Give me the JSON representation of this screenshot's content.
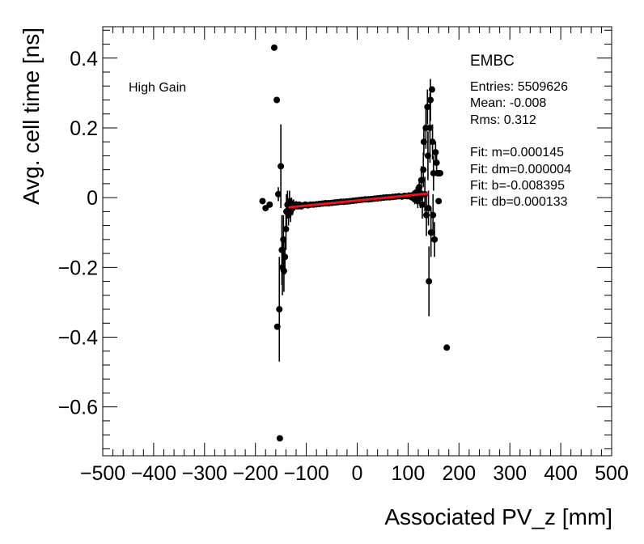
{
  "chart_data": {
    "type": "scatter",
    "xlabel": "Associated PV_z [mm]",
    "ylabel": "Avg. cell time [ns]",
    "xlim": [
      -500,
      500
    ],
    "ylim": [
      -0.74,
      0.49
    ],
    "x_ticks": [
      "−500",
      "−400",
      "−300",
      "−200",
      "−100",
      "0",
      "100",
      "200",
      "300",
      "400",
      "500"
    ],
    "x_tick_values": [
      -500,
      -400,
      -300,
      -200,
      -100,
      0,
      100,
      200,
      300,
      400,
      500
    ],
    "y_ticks": [
      "0.4",
      "0.2",
      "0",
      "−0.2",
      "−0.4",
      "−0.6"
    ],
    "y_tick_values": [
      0.4,
      0.2,
      0,
      -0.2,
      -0.4,
      -0.6
    ],
    "grid": false,
    "annotation": "High Gain",
    "stats_box": {
      "title": "EMBC",
      "lines": [
        "Entries: 5509626",
        "Mean: -0.008",
        "Rms: 0.312",
        "",
        "Fit: m=0.000145",
        "Fit: dm=0.000004",
        "Fit: b=-0.008395",
        "Fit: db=0.000133"
      ]
    },
    "fit_line": {
      "m": 0.000145,
      "b": -0.008395,
      "x_range": [
        -135,
        140
      ],
      "color": "#e8161b"
    },
    "marker_color": "#000000",
    "series": [
      {
        "points": [
          {
            "x": -186,
            "y": -0.01,
            "err": 0
          },
          {
            "x": -180,
            "y": -0.03,
            "err": 0
          },
          {
            "x": -172,
            "y": -0.02,
            "err": 0
          },
          {
            "x": -163,
            "y": 0.43,
            "err": 0
          },
          {
            "x": -158,
            "y": 0.28,
            "err": 0
          },
          {
            "x": -157,
            "y": -0.37,
            "err": 0
          },
          {
            "x": -153,
            "y": -0.32,
            "err": 0.15
          },
          {
            "x": -155,
            "y": 0.01,
            "err": 0.02
          },
          {
            "x": -152,
            "y": -0.69,
            "err": 0
          },
          {
            "x": -150,
            "y": 0.09,
            "err": 0.12
          },
          {
            "x": -148,
            "y": -0.15,
            "err": 0.1
          },
          {
            "x": -147,
            "y": -0.2,
            "err": 0.08
          },
          {
            "x": -145,
            "y": -0.12,
            "err": 0.07
          },
          {
            "x": -144,
            "y": -0.21,
            "err": 0.06
          },
          {
            "x": -142,
            "y": -0.17,
            "err": 0.05
          },
          {
            "x": -140,
            "y": -0.09,
            "err": 0.06
          },
          {
            "x": -139,
            "y": -0.04,
            "err": 0.05
          },
          {
            "x": -137,
            "y": -0.02,
            "err": 0.04
          },
          {
            "x": -135,
            "y": -0.05,
            "err": 0.03
          },
          {
            "x": -133,
            "y": -0.01,
            "err": 0.03
          },
          {
            "x": -131,
            "y": -0.04,
            "err": 0.03
          },
          {
            "x": -129,
            "y": -0.02,
            "err": 0.02
          },
          {
            "x": -127,
            "y": -0.03,
            "err": 0.02
          },
          {
            "x": -125,
            "y": -0.02,
            "err": 0.015
          },
          {
            "x": -123,
            "y": -0.025,
            "err": 0.012
          },
          {
            "x": -120,
            "y": -0.02,
            "err": 0.01
          },
          {
            "x": -117,
            "y": -0.025,
            "err": 0.008
          },
          {
            "x": -114,
            "y": -0.02,
            "err": 0.007
          },
          {
            "x": -110,
            "y": -0.025,
            "err": 0.006
          },
          {
            "x": -106,
            "y": -0.022,
            "err": 0.005
          },
          {
            "x": -102,
            "y": -0.02,
            "err": 0.005
          },
          {
            "x": -97,
            "y": -0.022,
            "err": 0.004
          },
          {
            "x": -92,
            "y": -0.02,
            "err": 0.004
          },
          {
            "x": -86,
            "y": -0.02,
            "err": 0.003
          },
          {
            "x": -80,
            "y": -0.019,
            "err": 0.003
          },
          {
            "x": -74,
            "y": -0.018,
            "err": 0.003
          },
          {
            "x": -68,
            "y": -0.017,
            "err": 0.003
          },
          {
            "x": -62,
            "y": -0.016,
            "err": 0.003
          },
          {
            "x": -56,
            "y": -0.016,
            "err": 0.003
          },
          {
            "x": -50,
            "y": -0.015,
            "err": 0.003
          },
          {
            "x": -44,
            "y": -0.014,
            "err": 0.003
          },
          {
            "x": -38,
            "y": -0.013,
            "err": 0.003
          },
          {
            "x": -32,
            "y": -0.012,
            "err": 0.003
          },
          {
            "x": -26,
            "y": -0.012,
            "err": 0.003
          },
          {
            "x": -20,
            "y": -0.011,
            "err": 0.003
          },
          {
            "x": -14,
            "y": -0.01,
            "err": 0.003
          },
          {
            "x": -8,
            "y": -0.009,
            "err": 0.003
          },
          {
            "x": -2,
            "y": -0.008,
            "err": 0.003
          },
          {
            "x": 4,
            "y": -0.007,
            "err": 0.003
          },
          {
            "x": 10,
            "y": -0.006,
            "err": 0.003
          },
          {
            "x": 16,
            "y": -0.005,
            "err": 0.003
          },
          {
            "x": 22,
            "y": -0.005,
            "err": 0.003
          },
          {
            "x": 28,
            "y": -0.004,
            "err": 0.003
          },
          {
            "x": 34,
            "y": -0.003,
            "err": 0.003
          },
          {
            "x": 40,
            "y": -0.002,
            "err": 0.003
          },
          {
            "x": 46,
            "y": -0.001,
            "err": 0.003
          },
          {
            "x": 52,
            "y": 0,
            "err": 0.003
          },
          {
            "x": 58,
            "y": 0.001,
            "err": 0.003
          },
          {
            "x": 64,
            "y": 0.001,
            "err": 0.004
          },
          {
            "x": 70,
            "y": 0.002,
            "err": 0.004
          },
          {
            "x": 76,
            "y": 0.003,
            "err": 0.004
          },
          {
            "x": 82,
            "y": 0.004,
            "err": 0.005
          },
          {
            "x": 88,
            "y": 0.003,
            "err": 0.005
          },
          {
            "x": 93,
            "y": 0.005,
            "err": 0.006
          },
          {
            "x": 98,
            "y": 0.004,
            "err": 0.007
          },
          {
            "x": 102,
            "y": 0.006,
            "err": 0.008
          },
          {
            "x": 106,
            "y": 0.002,
            "err": 0.01
          },
          {
            "x": 110,
            "y": 0.008,
            "err": 0.012
          },
          {
            "x": 113,
            "y": -0.005,
            "err": 0.014
          },
          {
            "x": 116,
            "y": 0.015,
            "err": 0.016
          },
          {
            "x": 119,
            "y": -0.01,
            "err": 0.02
          },
          {
            "x": 122,
            "y": 0.03,
            "err": 0.025
          },
          {
            "x": 124,
            "y": 0.0,
            "err": 0.03
          },
          {
            "x": 126,
            "y": 0.05,
            "err": 0.04
          },
          {
            "x": 128,
            "y": -0.02,
            "err": 0.04
          },
          {
            "x": 130,
            "y": 0.08,
            "err": 0.05
          },
          {
            "x": 131,
            "y": 0.16,
            "err": 0.04
          },
          {
            "x": 133,
            "y": 0.01,
            "err": 0.05
          },
          {
            "x": 135,
            "y": 0.2,
            "err": 0.06
          },
          {
            "x": 136,
            "y": -0.05,
            "err": 0.06
          },
          {
            "x": 138,
            "y": 0.26,
            "err": 0.05
          },
          {
            "x": 139,
            "y": 0.12,
            "err": 0.07
          },
          {
            "x": 140,
            "y": -0.03,
            "err": 0.05
          },
          {
            "x": 141,
            "y": -0.24,
            "err": 0.1
          },
          {
            "x": 143,
            "y": 0.2,
            "err": 0.1
          },
          {
            "x": 144,
            "y": 0.28,
            "err": 0.06
          },
          {
            "x": 145,
            "y": -0.1,
            "err": 0.07
          },
          {
            "x": 147,
            "y": 0.31,
            "err": 0
          },
          {
            "x": 148,
            "y": 0.16,
            "err": 0.05
          },
          {
            "x": 149,
            "y": -0.05,
            "err": 0.06
          },
          {
            "x": 150,
            "y": 0.07,
            "err": 0.05
          },
          {
            "x": 152,
            "y": -0.12,
            "err": 0.05
          },
          {
            "x": 154,
            "y": 0.13,
            "err": 0.03
          },
          {
            "x": 156,
            "y": 0.1,
            "err": 0.03
          },
          {
            "x": 158,
            "y": 0.07,
            "err": 0
          },
          {
            "x": 161,
            "y": 0.07,
            "err": 0
          },
          {
            "x": 163,
            "y": 0.07,
            "err": 0
          },
          {
            "x": 160,
            "y": -0.01,
            "err": 0
          },
          {
            "x": 176,
            "y": -0.43,
            "err": 0
          }
        ]
      }
    ]
  }
}
